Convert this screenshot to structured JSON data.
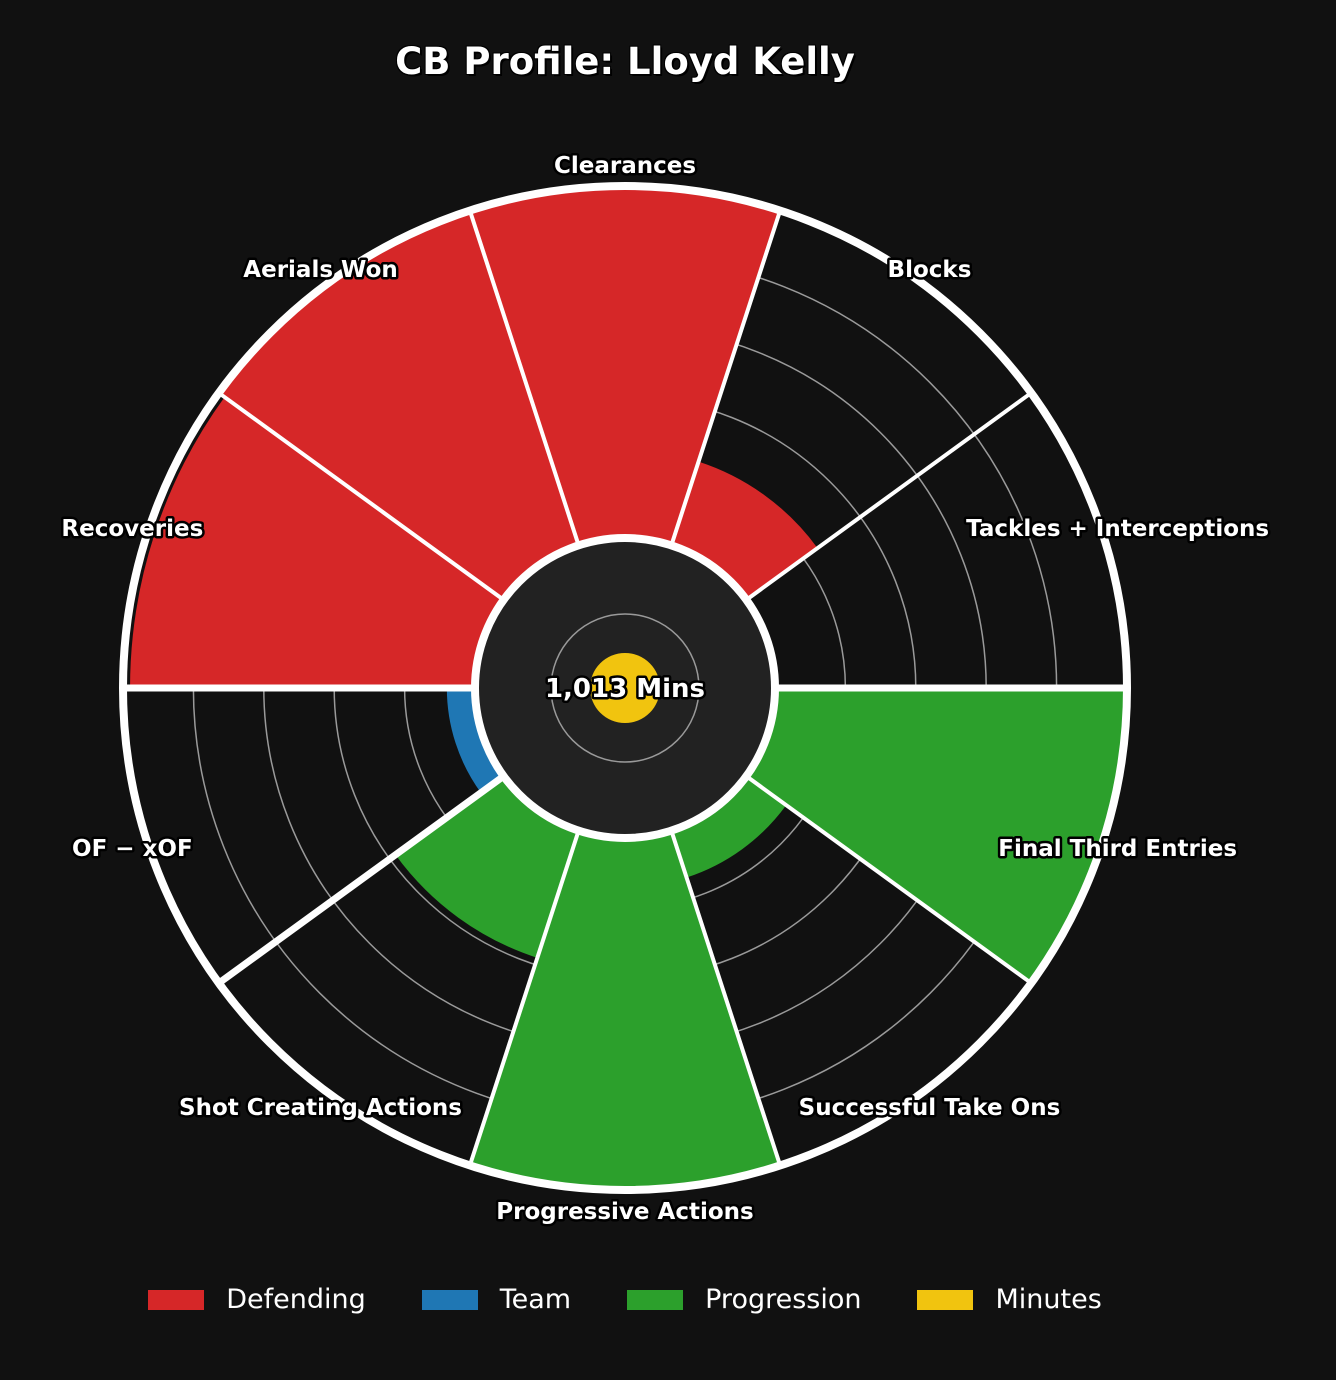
{
  "title": "CB Profile: Lloyd Kelly",
  "center": {
    "label": "1,013 Mins",
    "minutes": 1013,
    "minutes_fraction": 0.09
  },
  "colors": {
    "Defending": "#d62728",
    "Team": "#1f77b4",
    "Progression": "#2ca02c",
    "Minutes": "#f1c40f",
    "background": "#111111",
    "hub": "#222222"
  },
  "chart_data": {
    "type": "polar-bar",
    "title": "CB Profile: Lloyd Kelly",
    "rlim": [
      0,
      100
    ],
    "grid": true,
    "legend_position": "bottom",
    "categories": [
      "Clearances",
      "Blocks",
      "Tackles + Interceptions",
      "Final Third Entries",
      "Successful Take Ons",
      "Progressive Actions",
      "Shot Creating Actions",
      "OF − xOF",
      "Recoveries",
      "Aerials Won"
    ],
    "groups": [
      "Defending",
      "Defending",
      "Defending",
      "Progression",
      "Progression",
      "Progression",
      "Progression",
      "Team",
      "Defending",
      "Defending"
    ],
    "values": [
      100,
      25,
      0,
      100,
      14,
      100,
      38,
      8,
      98,
      100
    ]
  },
  "legend": [
    {
      "label": "Defending",
      "color": "#d62728"
    },
    {
      "label": "Team",
      "color": "#1f77b4"
    },
    {
      "label": "Progression",
      "color": "#2ca02c"
    },
    {
      "label": "Minutes",
      "color": "#f1c40f"
    }
  ]
}
